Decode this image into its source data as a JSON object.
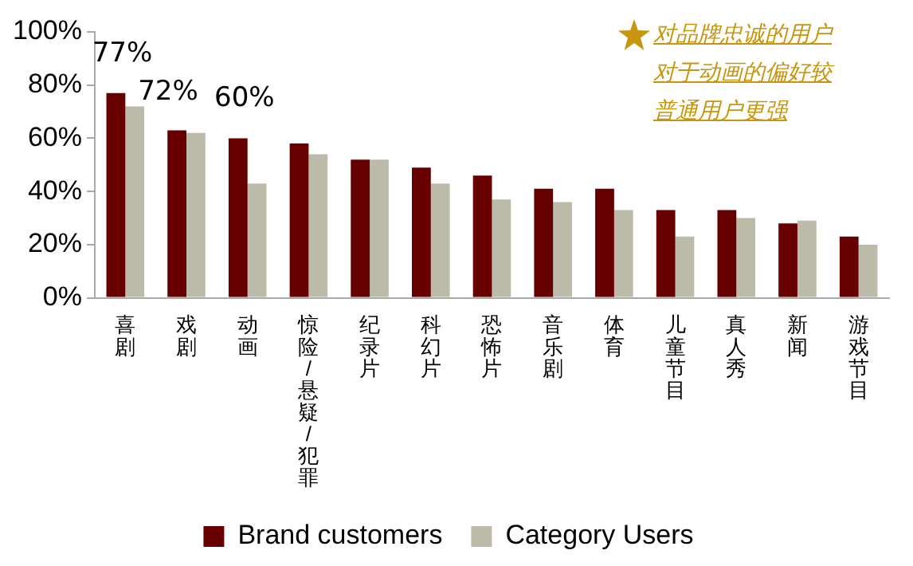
{
  "chart_data": {
    "type": "bar",
    "categories": [
      "喜剧",
      "戏剧",
      "动画",
      "惊险/悬疑/犯罪",
      "纪录片",
      "科幻片",
      "恐怖片",
      "音乐剧",
      "体育",
      "儿童节目",
      "真人秀",
      "新闻",
      "游戏节目"
    ],
    "series": [
      {
        "name": "Brand customers",
        "color": "#660000",
        "values": [
          77,
          63,
          60,
          58,
          52,
          49,
          46,
          41,
          41,
          33,
          33,
          28,
          23
        ],
        "value_labels": [
          "77%",
          null,
          "60%",
          null,
          null,
          null,
          null,
          null,
          null,
          null,
          null,
          null,
          null
        ]
      },
      {
        "name": "Category Users",
        "color": "#bcbaa8",
        "values": [
          72,
          62,
          43,
          54,
          52,
          43,
          37,
          36,
          33,
          23,
          30,
          29,
          20
        ],
        "value_labels": [
          "72%",
          null,
          null,
          null,
          null,
          null,
          null,
          null,
          null,
          null,
          null,
          null,
          null
        ]
      }
    ],
    "ylim": [
      0,
      100
    ],
    "yticks": [
      {
        "value": 0,
        "label": "0%"
      },
      {
        "value": 20,
        "label": "20%"
      },
      {
        "value": 40,
        "label": "40%"
      },
      {
        "value": 60,
        "label": "60%"
      },
      {
        "value": 80,
        "label": "80%"
      },
      {
        "value": 100,
        "label": "100%"
      }
    ],
    "grid": false,
    "legend": "bottom",
    "annotations": [
      "对品牌忠诚的用户对于动画的偏好较普通用户更强"
    ]
  }
}
